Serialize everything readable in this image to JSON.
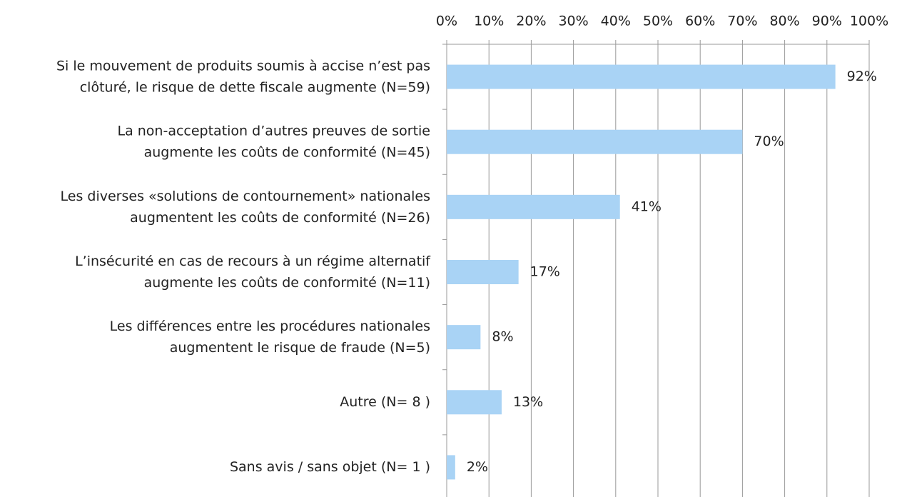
{
  "chart_data": {
    "type": "bar",
    "orientation": "horizontal",
    "categories": [
      "Si le mouvement de produits soumis à accise n’est pas\nclôturé, le risque de dette fiscale augmente (N=59)",
      "La non-acceptation d’autres preuves de sortie\naugmente les coûts de conformité (N=45)",
      "Les diverses «solutions de contournement» nationales\naugmentent les coûts de conformité (N=26)",
      "L’insécurité en cas de recours à un régime alternatif\naugmente les coûts de conformité (N=11)",
      "Les différences entre les procédures nationales\naugmentent le risque de fraude (N=5)",
      "Autre  (N= 8 )",
      "Sans avis / sans objet (N= 1 )"
    ],
    "values": [
      92,
      70,
      41,
      17,
      8,
      13,
      2
    ],
    "value_labels": [
      "92%",
      "70%",
      "41%",
      "17%",
      "8%",
      "13%",
      "2%"
    ],
    "color": "#a9d3f5",
    "xlim": [
      0,
      100
    ],
    "xticks": [
      {
        "value": 0,
        "label": "0%"
      },
      {
        "value": 10,
        "label": "10%"
      },
      {
        "value": 20,
        "label": "20%"
      },
      {
        "value": 30,
        "label": "30%"
      },
      {
        "value": 40,
        "label": "40%"
      },
      {
        "value": 50,
        "label": "50%"
      },
      {
        "value": 60,
        "label": "60%"
      },
      {
        "value": 70,
        "label": "70%"
      },
      {
        "value": 80,
        "label": "80%"
      },
      {
        "value": 90,
        "label": "90%"
      },
      {
        "value": 100,
        "label": "100%"
      }
    ],
    "grid": true
  }
}
